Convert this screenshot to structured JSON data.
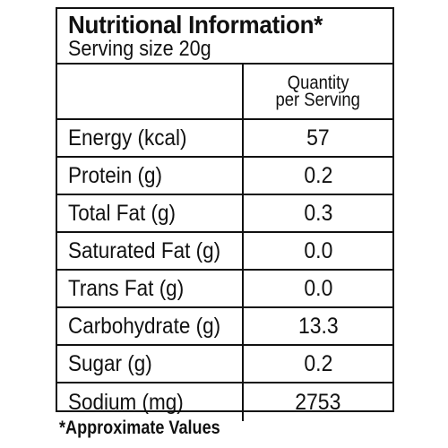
{
  "header": {
    "title": "Nutritional Information*",
    "serving": "Serving size 20g"
  },
  "table": {
    "column_header_line1": "Quantity",
    "column_header_line2": "per Serving",
    "rows": [
      {
        "label": "Energy (kcal)",
        "value": "57"
      },
      {
        "label": "Protein (g)",
        "value": "0.2"
      },
      {
        "label": "Total Fat (g)",
        "value": "0.3"
      },
      {
        "label": "Saturated Fat (g)",
        "value": "0.0"
      },
      {
        "label": "Trans Fat (g)",
        "value": "0.0"
      },
      {
        "label": "Carbohydrate (g)",
        "value": "13.3"
      },
      {
        "label": "Sugar (g)",
        "value": "0.2"
      },
      {
        "label": "Sodium (mg)",
        "value": "2753"
      }
    ]
  },
  "footnote": "*Approximate Values"
}
